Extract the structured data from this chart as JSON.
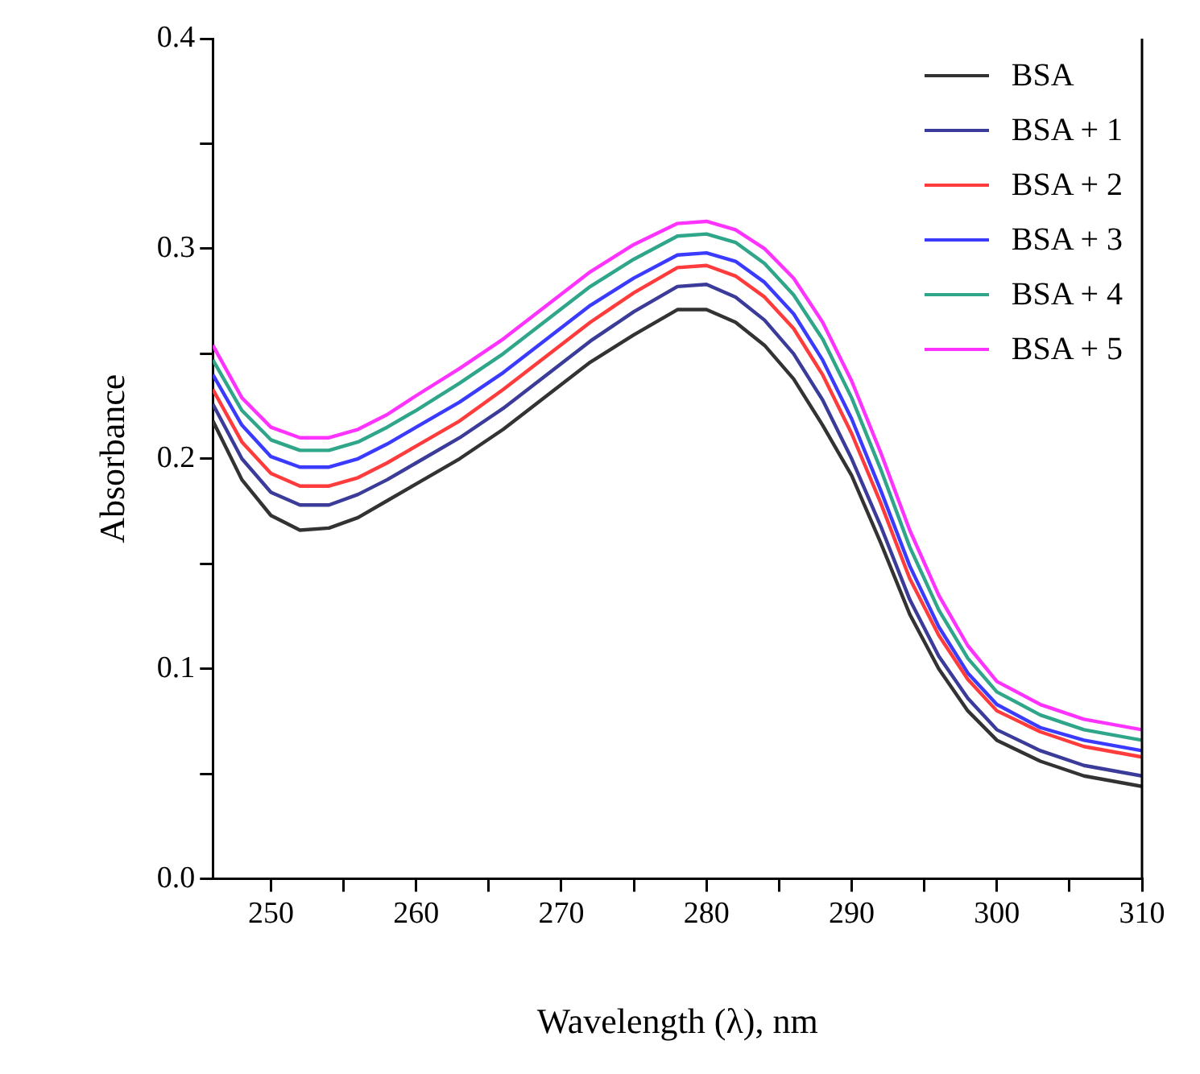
{
  "chart_data": {
    "type": "line",
    "xlabel": "Wavelength (λ), nm",
    "ylabel": "Absorbance",
    "x": [
      246,
      248,
      250,
      252,
      254,
      256,
      258,
      260,
      263,
      266,
      269,
      272,
      275,
      278,
      280,
      282,
      284,
      286,
      288,
      290,
      292,
      294,
      296,
      298,
      300,
      303,
      306,
      310
    ],
    "series": [
      {
        "name": "BSA",
        "color": "#333333",
        "values": [
          0.218,
          0.19,
          0.173,
          0.166,
          0.167,
          0.172,
          0.18,
          0.188,
          0.2,
          0.214,
          0.23,
          0.246,
          0.259,
          0.271,
          0.271,
          0.265,
          0.254,
          0.238,
          0.216,
          0.192,
          0.16,
          0.126,
          0.1,
          0.08,
          0.066,
          0.056,
          0.049,
          0.044
        ]
      },
      {
        "name": "BSA + 1",
        "color": "#3b3b9a",
        "values": [
          0.226,
          0.2,
          0.184,
          0.178,
          0.178,
          0.183,
          0.19,
          0.198,
          0.21,
          0.224,
          0.24,
          0.256,
          0.27,
          0.282,
          0.283,
          0.277,
          0.266,
          0.25,
          0.228,
          0.2,
          0.168,
          0.133,
          0.106,
          0.086,
          0.071,
          0.061,
          0.054,
          0.049
        ]
      },
      {
        "name": "BSA + 2",
        "color": "#ff3b3b",
        "values": [
          0.233,
          0.208,
          0.193,
          0.187,
          0.187,
          0.191,
          0.198,
          0.206,
          0.218,
          0.233,
          0.249,
          0.265,
          0.279,
          0.291,
          0.292,
          0.287,
          0.277,
          0.262,
          0.24,
          0.212,
          0.179,
          0.143,
          0.116,
          0.095,
          0.08,
          0.07,
          0.063,
          0.058
        ]
      },
      {
        "name": "BSA + 3",
        "color": "#3b3bff",
        "values": [
          0.24,
          0.216,
          0.201,
          0.196,
          0.196,
          0.2,
          0.207,
          0.215,
          0.227,
          0.241,
          0.257,
          0.273,
          0.286,
          0.297,
          0.298,
          0.294,
          0.284,
          0.269,
          0.247,
          0.219,
          0.185,
          0.149,
          0.12,
          0.098,
          0.083,
          0.072,
          0.066,
          0.061
        ]
      },
      {
        "name": "BSA + 4",
        "color": "#2fa68a",
        "values": [
          0.247,
          0.223,
          0.209,
          0.204,
          0.204,
          0.208,
          0.215,
          0.223,
          0.236,
          0.25,
          0.266,
          0.282,
          0.295,
          0.306,
          0.307,
          0.303,
          0.293,
          0.278,
          0.257,
          0.229,
          0.195,
          0.158,
          0.128,
          0.105,
          0.089,
          0.078,
          0.071,
          0.066
        ]
      },
      {
        "name": "BSA + 5",
        "color": "#ff33ff",
        "values": [
          0.254,
          0.229,
          0.215,
          0.21,
          0.21,
          0.214,
          0.221,
          0.23,
          0.243,
          0.257,
          0.273,
          0.289,
          0.302,
          0.312,
          0.313,
          0.309,
          0.3,
          0.286,
          0.265,
          0.237,
          0.203,
          0.166,
          0.135,
          0.111,
          0.094,
          0.083,
          0.076,
          0.071
        ]
      }
    ],
    "xlim": [
      246,
      310
    ],
    "xticks": [
      250,
      {
        "value": 255,
        "label": null
      },
      260,
      {
        "value": 265,
        "label": null
      },
      270,
      {
        "value": 275,
        "label": null
      },
      280,
      {
        "value": 285,
        "label": null
      },
      290,
      {
        "value": 295,
        "label": null
      },
      300,
      {
        "value": 305,
        "label": null
      },
      310
    ],
    "ylim": [
      0,
      0.4
    ],
    "yticks": [
      {
        "value": 0,
        "label": "0.0"
      },
      {
        "value": 0.05,
        "label": null
      },
      0.1,
      {
        "value": 0.15,
        "label": null
      },
      0.2,
      {
        "value": 0.25,
        "label": null
      },
      0.3,
      {
        "value": 0.35,
        "label": null
      },
      0.4
    ],
    "grid": false,
    "legend": "top right",
    "marker": "none",
    "line_style": "solid"
  }
}
